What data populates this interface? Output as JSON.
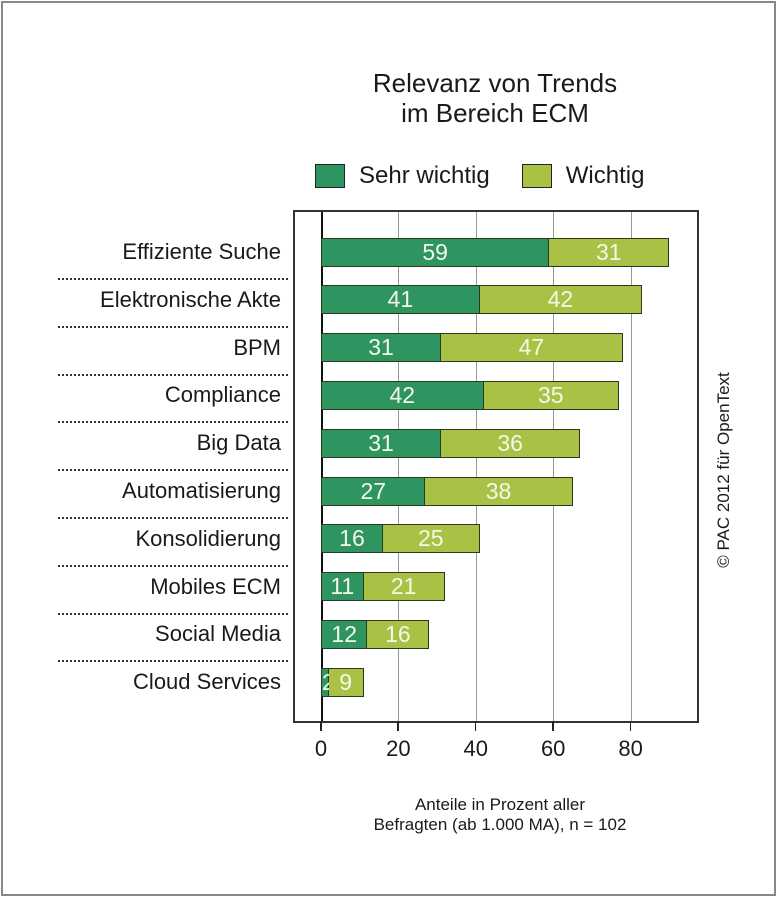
{
  "title_line1": "Relevanz von Trends",
  "title_line2": "im Bereich ECM",
  "legend": [
    {
      "label": "Sehr wichtig",
      "color": "#2e9460"
    },
    {
      "label": "Wichtig",
      "color": "#a9c245"
    }
  ],
  "xlabel_line1": "Anteile in Prozent aller",
  "xlabel_line2": "Befragten (ab 1.000 MA), n = 102",
  "credit": "© PAC 2012 für OpenText",
  "ticks": [
    "0",
    "20",
    "40",
    "60",
    "80"
  ],
  "categories": [
    "Effiziente Suche",
    "Elektronische Akte",
    "BPM",
    "Compliance",
    "Big Data",
    "Automatisierung",
    "Konsolidierung",
    "Mobiles ECM",
    "Social Media",
    "Cloud Services"
  ],
  "chart_data": {
    "type": "bar",
    "orientation": "horizontal",
    "stacked": true,
    "title": "Relevanz von Trends im Bereich ECM",
    "categories": [
      "Effiziente Suche",
      "Elektronische Akte",
      "BPM",
      "Compliance",
      "Big Data",
      "Automatisierung",
      "Konsolidierung",
      "Mobiles ECM",
      "Social Media",
      "Cloud Services"
    ],
    "series": [
      {
        "name": "Sehr wichtig",
        "color": "#2e9460",
        "values": [
          59,
          41,
          31,
          42,
          31,
          27,
          16,
          11,
          12,
          2
        ]
      },
      {
        "name": "Wichtig",
        "color": "#a9c245",
        "values": [
          31,
          42,
          47,
          35,
          36,
          38,
          25,
          21,
          16,
          9
        ]
      }
    ],
    "xlabel": "Anteile in Prozent aller Befragten (ab 1.000 MA), n = 102",
    "ylabel": "",
    "xlim": [
      0,
      95
    ],
    "xticks": [
      0,
      20,
      40,
      60,
      80
    ],
    "grid": true,
    "legend_position": "top",
    "annotation": "© PAC 2012 für OpenText"
  }
}
